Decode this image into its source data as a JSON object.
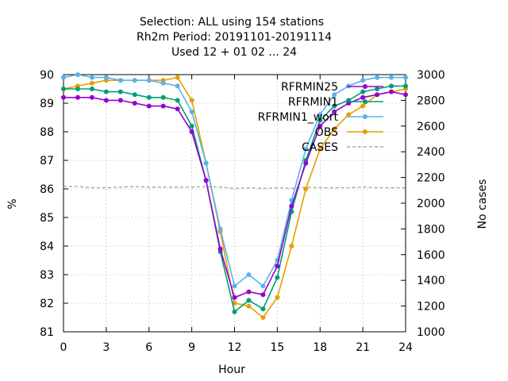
{
  "chart_data": {
    "type": "line",
    "title_lines": [
      "Selection: ALL using   154 stations",
      "Rh2m   Period: 20191101-20191114",
      "Used  12 + 01 02 ... 24"
    ],
    "xlabel": "Hour",
    "ylabel": "%",
    "y2label": "No cases",
    "xlim": [
      0,
      24
    ],
    "ylim": [
      81,
      90
    ],
    "y2lim": [
      1000,
      3000
    ],
    "xticks": [
      0,
      3,
      6,
      9,
      12,
      15,
      18,
      21,
      24
    ],
    "yticks": [
      81,
      82,
      83,
      84,
      85,
      86,
      87,
      88,
      89,
      90
    ],
    "y2ticks": [
      1000,
      1200,
      1400,
      1600,
      1800,
      2000,
      2200,
      2400,
      2600,
      2800,
      3000
    ],
    "grid": true,
    "legend_position": "top-right",
    "x": [
      0,
      1,
      2,
      3,
      4,
      5,
      6,
      7,
      8,
      9,
      10,
      11,
      12,
      13,
      14,
      15,
      16,
      17,
      18,
      19,
      20,
      21,
      22,
      23,
      24
    ],
    "series": [
      {
        "name": "RFRMIN25",
        "color": "#9400d3",
        "marker": "circle",
        "axis": "y",
        "values": [
          89.2,
          89.2,
          89.2,
          89.1,
          89.1,
          89.0,
          88.9,
          88.9,
          88.8,
          88.0,
          86.3,
          83.9,
          82.2,
          82.4,
          82.3,
          83.3,
          85.4,
          86.9,
          88.2,
          88.7,
          89.0,
          89.2,
          89.3,
          89.4,
          89.3
        ]
      },
      {
        "name": "RFRMIN1",
        "color": "#009e73",
        "marker": "circle",
        "axis": "y",
        "values": [
          89.5,
          89.5,
          89.5,
          89.4,
          89.4,
          89.3,
          89.2,
          89.2,
          89.1,
          88.2,
          86.3,
          83.8,
          81.7,
          82.1,
          81.8,
          82.9,
          85.2,
          87.0,
          88.4,
          88.9,
          89.1,
          89.4,
          89.5,
          89.6,
          89.6
        ]
      },
      {
        "name": "RFRMIN1_wort",
        "color": "#56b4e9",
        "marker": "circle",
        "axis": "y",
        "values": [
          89.9,
          90.0,
          89.9,
          89.9,
          89.8,
          89.8,
          89.8,
          89.7,
          89.6,
          88.7,
          86.9,
          84.6,
          82.6,
          83.0,
          82.6,
          83.5,
          85.6,
          87.4,
          88.6,
          89.3,
          89.6,
          89.8,
          89.9,
          89.9,
          89.9
        ]
      },
      {
        "name": "OBS",
        "color": "#e69f00",
        "marker": "circle",
        "axis": "y",
        "values": [
          89.5,
          89.6,
          89.7,
          89.8,
          89.8,
          89.8,
          89.8,
          89.8,
          89.9,
          89.1,
          86.9,
          84.5,
          82.0,
          81.9,
          81.5,
          82.2,
          84.0,
          86.0,
          87.4,
          88.1,
          88.6,
          88.9,
          89.3,
          89.4,
          89.5
        ]
      },
      {
        "name": "CASES",
        "color": "#999999",
        "marker": "none",
        "dashed": true,
        "axis": "y2",
        "values": [
          2130,
          2130,
          2120,
          2120,
          2125,
          2130,
          2125,
          2125,
          2125,
          2125,
          2130,
          2125,
          2115,
          2120,
          2115,
          2120,
          2115,
          2125,
          2120,
          2120,
          2120,
          2125,
          2120,
          2120,
          2120
        ]
      }
    ],
    "legend": {
      "entries": [
        {
          "label": "RFRMIN25",
          "series": 0
        },
        {
          "label": "RFRMIN1",
          "series": 1
        },
        {
          "label": "RFRMIN1_wort",
          "series": 2
        },
        {
          "label": "OBS",
          "series": 3
        },
        {
          "label": "CASES",
          "series": 4
        }
      ]
    }
  }
}
